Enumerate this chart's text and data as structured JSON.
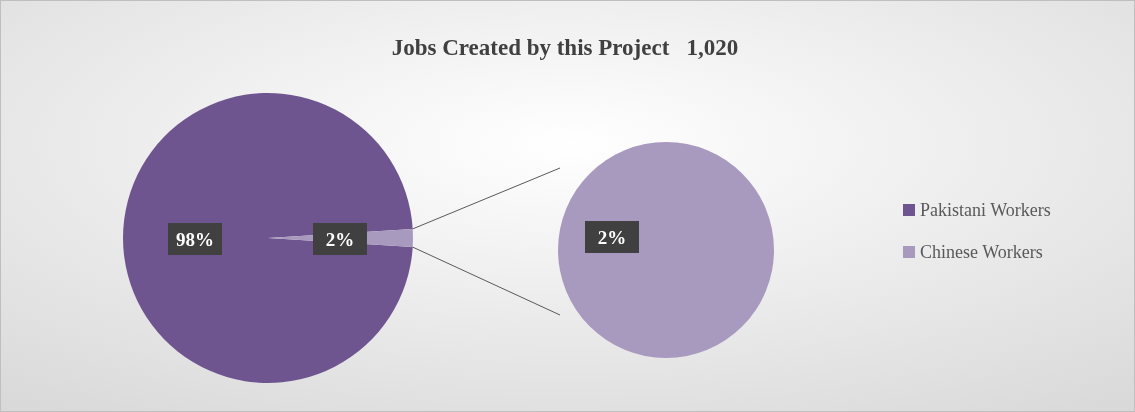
{
  "chart_data": {
    "type": "pie",
    "title": "Jobs Created by this Project   1,020",
    "categories": [
      "Pakistani Workers",
      "Chinese Workers"
    ],
    "values": [
      98,
      2
    ],
    "colors": [
      "#6f5590",
      "#a899bf"
    ],
    "value_labels": [
      "98%",
      "2%"
    ],
    "annotations": [
      "2%"
    ],
    "legend": "right"
  }
}
